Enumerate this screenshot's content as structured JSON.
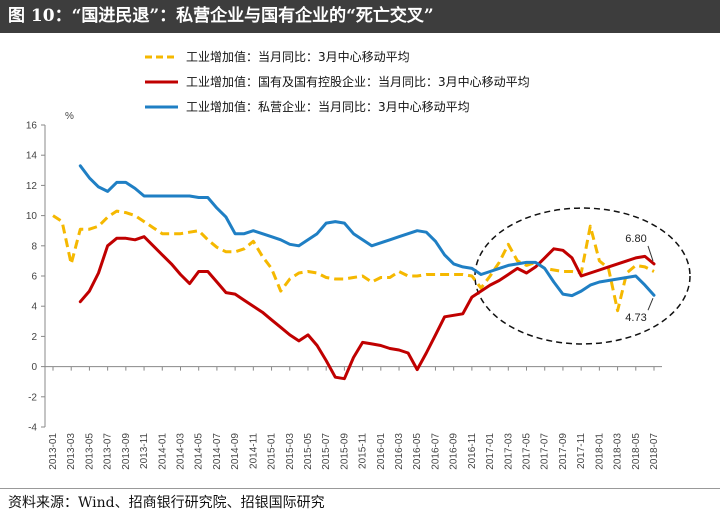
{
  "title": "图 10：“国进民退”：私营企业与国有企业的“死亡交叉”",
  "source": "资料来源：Wind、招商银行研究院、招银国际研究",
  "chart_data": {
    "type": "line",
    "ylabel": "%",
    "ylim": [
      -4,
      16
    ],
    "yticks": [
      -4,
      -2,
      0,
      2,
      4,
      6,
      8,
      10,
      12,
      14,
      16
    ],
    "grid": false,
    "legend": "top-center",
    "x": [
      "2013-01",
      "2013-02",
      "2013-03",
      "2013-04",
      "2013-05",
      "2013-06",
      "2013-07",
      "2013-08",
      "2013-09",
      "2013-10",
      "2013-11",
      "2013-12",
      "2014-01",
      "2014-02",
      "2014-03",
      "2014-04",
      "2014-05",
      "2014-06",
      "2014-07",
      "2014-08",
      "2014-09",
      "2014-10",
      "2014-11",
      "2014-12",
      "2015-01",
      "2015-02",
      "2015-03",
      "2015-04",
      "2015-05",
      "2015-06",
      "2015-07",
      "2015-08",
      "2015-09",
      "2015-10",
      "2015-11",
      "2015-12",
      "2016-01",
      "2016-02",
      "2016-03",
      "2016-04",
      "2016-05",
      "2016-06",
      "2016-07",
      "2016-08",
      "2016-09",
      "2016-10",
      "2016-11",
      "2016-12",
      "2017-01",
      "2017-02",
      "2017-03",
      "2017-04",
      "2017-05",
      "2017-06",
      "2017-07",
      "2017-08",
      "2017-09",
      "2017-10",
      "2017-11",
      "2017-12",
      "2018-01",
      "2018-02",
      "2018-03",
      "2018-04",
      "2018-05",
      "2018-06",
      "2018-07"
    ],
    "xtick_labels": [
      "2013-01",
      "2013-03",
      "2013-05",
      "2013-07",
      "2013-09",
      "2013-11",
      "2014-01",
      "2014-03",
      "2014-05",
      "2014-07",
      "2014-09",
      "2014-11",
      "2015-01",
      "2015-03",
      "2015-05",
      "2015-07",
      "2015-09",
      "2015-11",
      "2016-01",
      "2016-03",
      "2016-05",
      "2016-07",
      "2016-09",
      "2016-11",
      "2017-01",
      "2017-03",
      "2017-05",
      "2017-07",
      "2017-09",
      "2017-11",
      "2018-01",
      "2018-03",
      "2018-05",
      "2018-07"
    ],
    "series": [
      {
        "name": "工业增加值：当月同比：3月中心移动平均",
        "color": "#f5b800",
        "dashed": true,
        "values": [
          10.0,
          9.6,
          6.8,
          9.1,
          9.1,
          9.3,
          9.9,
          10.3,
          10.2,
          10.0,
          9.6,
          9.2,
          8.8,
          8.8,
          8.8,
          8.9,
          9.0,
          8.4,
          7.9,
          7.6,
          7.6,
          7.8,
          8.3,
          7.3,
          6.5,
          5.0,
          5.8,
          6.2,
          6.3,
          6.2,
          5.9,
          5.8,
          5.8,
          5.9,
          6.0,
          5.6,
          5.9,
          5.9,
          6.3,
          6.0,
          6.0,
          6.1,
          6.1,
          6.1,
          6.1,
          6.1,
          6.0,
          5.2,
          6.0,
          6.9,
          8.1,
          7.0,
          6.7,
          6.9,
          6.5,
          6.4,
          6.3,
          6.3,
          6.2,
          9.3,
          7.0,
          6.5,
          3.7,
          6.2,
          6.7,
          6.6,
          6.3
        ]
      },
      {
        "name": "工业增加值：国有及国有控股企业：当月同比：3月中心移动平均",
        "color": "#c00000",
        "dashed": false,
        "values": [
          null,
          null,
          null,
          4.3,
          5.0,
          6.2,
          8.0,
          8.5,
          8.5,
          8.4,
          8.6,
          8.0,
          7.4,
          6.8,
          6.1,
          5.5,
          6.3,
          6.3,
          5.6,
          4.9,
          4.8,
          4.4,
          4.0,
          3.6,
          3.1,
          2.6,
          2.1,
          1.7,
          2.1,
          1.4,
          0.4,
          -0.7,
          -0.8,
          0.6,
          1.6,
          1.5,
          1.4,
          1.2,
          1.1,
          0.9,
          -0.2,
          0.9,
          2.1,
          3.3,
          3.4,
          3.5,
          4.6,
          5.0,
          5.4,
          5.7,
          6.1,
          6.5,
          6.2,
          6.6,
          7.2,
          7.8,
          7.7,
          7.2,
          6.0,
          6.2,
          6.4,
          6.6,
          6.8,
          7.0,
          7.2,
          7.3,
          6.8
        ]
      },
      {
        "name": "工业增加值：私营企业：当月同比：3月中心移动平均",
        "color": "#1f7fc4",
        "dashed": false,
        "values": [
          null,
          null,
          null,
          13.3,
          12.5,
          11.9,
          11.6,
          12.2,
          12.2,
          11.8,
          11.3,
          11.3,
          11.3,
          11.3,
          11.3,
          11.3,
          11.2,
          11.2,
          10.5,
          9.9,
          8.8,
          8.8,
          9.0,
          8.8,
          8.6,
          8.4,
          8.1,
          8.0,
          8.4,
          8.8,
          9.5,
          9.6,
          9.5,
          8.8,
          8.4,
          8.0,
          8.2,
          8.4,
          8.6,
          8.8,
          9.0,
          8.9,
          8.3,
          7.4,
          6.8,
          6.6,
          6.5,
          6.1,
          6.3,
          6.5,
          6.7,
          6.8,
          6.9,
          6.9,
          6.5,
          5.6,
          4.8,
          4.7,
          5.0,
          5.4,
          5.6,
          5.7,
          5.8,
          5.9,
          6.0,
          5.4,
          4.73
        ]
      }
    ],
    "annotations": [
      {
        "text": "6.80",
        "series": 1,
        "x": "2018-07",
        "y": 6.8
      },
      {
        "text": "4.73",
        "series": 2,
        "x": "2018-07",
        "y": 4.73
      }
    ],
    "highlight": {
      "shape": "dashed-ellipse",
      "x_from": "2016-12",
      "x_to": "2018-08",
      "y_from": 1.5,
      "y_to": 10.5
    }
  }
}
